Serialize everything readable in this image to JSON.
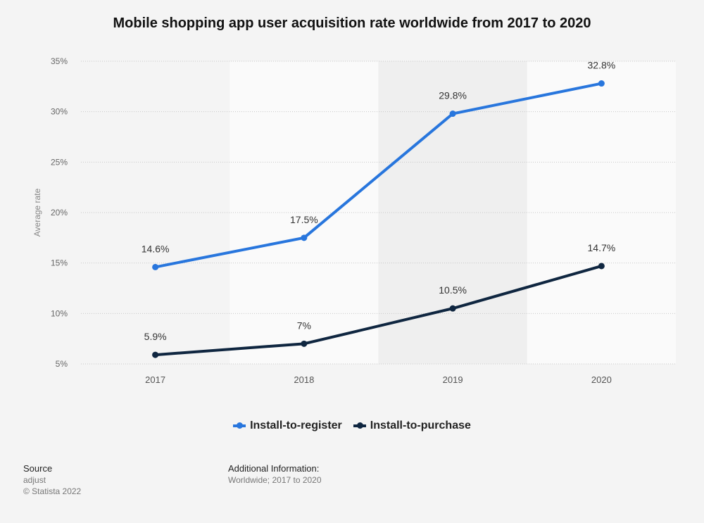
{
  "chart_data": {
    "type": "line",
    "title": "Mobile shopping app user acquisition rate worldwide from 2017 to 2020",
    "ylabel": "Average rate",
    "xlabel": "",
    "categories": [
      "2017",
      "2018",
      "2019",
      "2020"
    ],
    "ylim": [
      5,
      35
    ],
    "yticks": [
      "5%",
      "10%",
      "15%",
      "20%",
      "25%",
      "30%",
      "35%"
    ],
    "grid": true,
    "legend_position": "bottom",
    "series": [
      {
        "name": "Install-to-register",
        "color": "#2876dd",
        "values": [
          14.6,
          17.5,
          29.8,
          32.8
        ],
        "labels": [
          "14.6%",
          "17.5%",
          "29.8%",
          "32.8%"
        ]
      },
      {
        "name": "Install-to-purchase",
        "color": "#0f2640",
        "values": [
          5.9,
          7,
          10.5,
          14.7
        ],
        "labels": [
          "5.9%",
          "7%",
          "10.5%",
          "14.7%"
        ]
      }
    ]
  },
  "footer": {
    "source_heading": "Source",
    "source": "adjust",
    "copyright": "© Statista 2022",
    "info_heading": "Additional Information:",
    "info": "Worldwide; 2017 to 2020"
  }
}
